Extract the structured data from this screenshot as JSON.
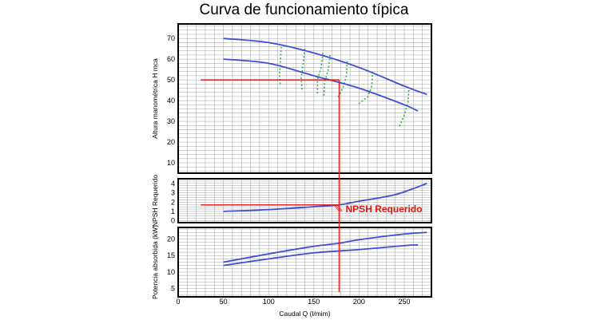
{
  "chart_data": {
    "type": "line",
    "title": "Curva de funcionamiento típica",
    "xlabel": "Caudal Q  (l/mim)",
    "xlim": [
      0,
      280
    ],
    "x_ticks": [
      0,
      50,
      100,
      150,
      200,
      250
    ],
    "grid": true,
    "colors": {
      "curve": "#3a4fd6",
      "operating": "#e01818",
      "efficiency": "#2bb04a",
      "frame": "#000000",
      "grid": "#888888"
    },
    "panels": [
      {
        "id": "head",
        "ylabel": "Altura manométrica H mca",
        "ylim": [
          5,
          77
        ],
        "y_ticks": [
          10,
          20,
          30,
          40,
          50,
          60,
          70
        ],
        "series": [
          {
            "x": [
              50,
              100,
              150,
              200,
              250,
              275
            ],
            "values": [
              70,
              68,
              63,
              56,
              47,
              43
            ]
          },
          {
            "x": [
              50,
              100,
              150,
              200,
              250,
              265
            ],
            "values": [
              60,
              58,
              52,
              46,
              38,
              35
            ]
          }
        ],
        "efficiency_lines": [
          {
            "x": [
              114,
              113,
              112,
              113
            ],
            "values": [
              66,
              58,
              52,
              47
            ]
          },
          {
            "x": [
              140,
              138,
              136,
              137
            ],
            "values": [
              65,
              57,
              51,
              45
            ]
          },
          {
            "x": [
              160,
              158,
              154,
              154
            ],
            "values": [
              63,
              56,
              50,
              43
            ]
          },
          {
            "x": [
              168,
              166,
              162,
              161
            ],
            "values": [
              62,
              55,
              49,
              42
            ]
          },
          {
            "x": [
              187,
              186,
              182,
              176
            ],
            "values": [
              59,
              52,
              46,
              41
            ]
          },
          {
            "x": [
              215,
              214,
              210,
              198
            ],
            "values": [
              54,
              47,
              42,
              38
            ]
          },
          {
            "x": [
              255,
              254,
              250,
              244
            ],
            "values": [
              45,
              39,
              33,
              27
            ]
          }
        ],
        "operating_point": {
          "x": 178,
          "y": 50,
          "x_from": 25
        }
      },
      {
        "id": "npsh",
        "ylabel": "NPSH Requerido",
        "ylim": [
          -0.2,
          4.5
        ],
        "y_ticks": [
          0,
          1,
          2,
          3,
          4
        ],
        "series": [
          {
            "x": [
              50,
              100,
              150,
              178,
              200,
              240,
              275
            ],
            "values": [
              1,
              1.2,
              1.5,
              1.7,
              2.1,
              2.8,
              4
            ]
          }
        ],
        "operating_point": {
          "x": 178,
          "y": 1.7,
          "x_from": 25
        },
        "annotation": "NPSH Requerido"
      },
      {
        "id": "power",
        "ylabel": "Potencia absorbida (kW)",
        "ylim": [
          2.5,
          23.5
        ],
        "y_ticks": [
          5,
          10,
          15,
          20
        ],
        "series": [
          {
            "x": [
              50,
              100,
              150,
              178,
              200,
              250,
              275
            ],
            "values": [
              13,
              15.5,
              17.8,
              18.7,
              19.8,
              21.5,
              22
            ]
          },
          {
            "x": [
              50,
              100,
              150,
              200,
              250,
              265
            ],
            "values": [
              12,
              14,
              15.8,
              16.8,
              18,
              18.2
            ]
          }
        ]
      }
    ]
  }
}
